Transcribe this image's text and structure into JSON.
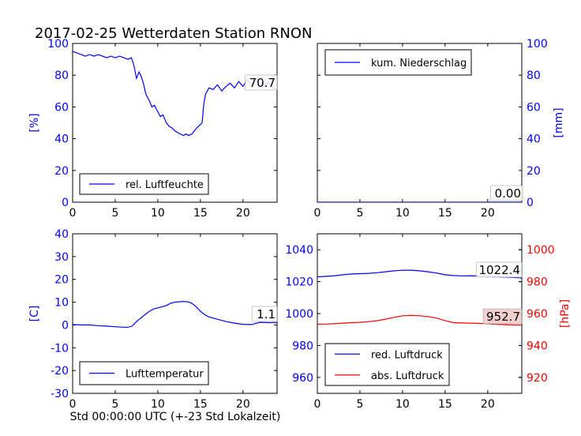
{
  "title": "2017-02-25 Wetterdaten Station RNON",
  "xlabel": "Std 00:00:00 UTC (+-23 Std Lokalzeit)",
  "chart_data": [
    {
      "type": "line",
      "name": "humidity",
      "ylabel": "[%]",
      "xlim": [
        0,
        24
      ],
      "ylim": [
        0,
        100
      ],
      "x_ticks": [
        0,
        5,
        10,
        15,
        20
      ],
      "y_ticks": [
        0,
        20,
        40,
        60,
        80,
        100
      ],
      "tick_color": "#0000ff",
      "legend_position": "lower-left",
      "last_value_label": "70.7",
      "series": [
        {
          "name": "rel. Luftfeuchte",
          "color": "#0000ff",
          "x": [
            0,
            0.5,
            1,
            1.5,
            2,
            2.5,
            3,
            3.5,
            4,
            4.5,
            5,
            5.5,
            6,
            6.5,
            6.9,
            7.2,
            7.5,
            7.8,
            8,
            8.3,
            8.6,
            9,
            9.3,
            9.6,
            10,
            10.3,
            10.6,
            11,
            11.3,
            11.6,
            12,
            12.3,
            12.6,
            13,
            13.3,
            13.6,
            14,
            14.3,
            14.6,
            15,
            15.2,
            15.4,
            15.6,
            16,
            16.5,
            17,
            17.5,
            18,
            18.5,
            19,
            19.5,
            20,
            20.5,
            21,
            21.5,
            22,
            22.5,
            23,
            23.5,
            24
          ],
          "y": [
            95,
            94,
            93,
            92,
            93,
            92,
            93,
            92,
            91,
            92,
            91,
            92,
            91,
            90,
            91,
            86,
            78,
            82,
            80,
            75,
            68,
            64,
            60,
            61,
            57,
            54,
            55,
            50,
            48,
            47,
            45,
            44,
            43,
            42,
            43,
            42,
            43,
            45,
            47,
            49,
            50,
            62,
            68,
            72,
            71,
            74,
            70,
            73,
            75,
            72,
            76,
            73,
            77,
            74,
            78,
            75,
            73,
            76,
            72,
            71
          ]
        }
      ]
    },
    {
      "type": "line",
      "name": "precipitation",
      "ylabel": "[mm]",
      "xlim": [
        0,
        24
      ],
      "ylim": [
        0,
        100
      ],
      "x_ticks": [
        0,
        5,
        10,
        15,
        20
      ],
      "y_ticks": [
        0,
        20,
        40,
        60,
        80,
        100
      ],
      "tick_color": "#0000ff",
      "legend_position": "top-left",
      "last_value_label": "0.00",
      "series": [
        {
          "name": "kum. Niederschlag",
          "color": "#0000ff",
          "x": [
            0,
            24
          ],
          "y": [
            0,
            0
          ]
        }
      ]
    },
    {
      "type": "line",
      "name": "temperature",
      "ylabel": "[C]",
      "xlim": [
        0,
        24
      ],
      "ylim": [
        -30,
        40
      ],
      "x_ticks": [
        0,
        5,
        10,
        15,
        20
      ],
      "y_ticks": [
        -30,
        -20,
        -10,
        0,
        10,
        20,
        30,
        40
      ],
      "tick_color": "#0000ff",
      "legend_position": "lower-left",
      "last_value_label": "1.1",
      "series": [
        {
          "name": "Lufttemperatur",
          "color": "#0000ff",
          "x": [
            0,
            1,
            2,
            3,
            4,
            5,
            6,
            6.5,
            7,
            7.5,
            8,
            8.5,
            9,
            9.5,
            10,
            10.5,
            11,
            11.5,
            12,
            12.5,
            13,
            13.5,
            14,
            14.5,
            15,
            15.5,
            16,
            17,
            18,
            19,
            20,
            21,
            22,
            23,
            24
          ],
          "y": [
            0.2,
            0,
            0,
            -0.3,
            -0.5,
            -0.8,
            -1,
            -1,
            -0.5,
            1.5,
            3,
            4.5,
            6,
            7,
            7.5,
            8,
            8.5,
            9.5,
            10,
            10.2,
            10.3,
            10.2,
            9.5,
            8,
            6,
            4.5,
            3.5,
            2.5,
            1.5,
            0.8,
            0.3,
            0.2,
            1.2,
            1,
            1.1
          ]
        }
      ]
    },
    {
      "type": "line",
      "name": "pressure",
      "xlim": [
        0,
        24
      ],
      "ylim": [
        950,
        1050
      ],
      "x_ticks": [
        0,
        5,
        10,
        15,
        20
      ],
      "y_ticks": [
        960,
        980,
        1000,
        1020,
        1040
      ],
      "tick_color": "#0000ff",
      "y2label": "[hPa]",
      "y2lim": [
        910,
        1010
      ],
      "y2_ticks": [
        920,
        940,
        960,
        980,
        1000
      ],
      "y2_tick_color": "#ff0000",
      "legend_position": "lower-left",
      "last_value_labels": [
        "1022.4",
        "952.7"
      ],
      "series": [
        {
          "name": "red. Luftdruck",
          "color": "#0000ff",
          "axis": "left",
          "x": [
            0,
            1,
            2,
            3,
            4,
            5,
            6,
            7,
            8,
            9,
            10,
            11,
            12,
            13,
            14,
            15,
            16,
            17,
            18,
            19,
            20,
            21,
            22,
            23,
            24
          ],
          "y": [
            1023,
            1023.3,
            1023.7,
            1024.3,
            1024.8,
            1025,
            1025.2,
            1025.6,
            1026.2,
            1026.8,
            1027.2,
            1027.2,
            1026.8,
            1026.2,
            1025.4,
            1024.3,
            1023.8,
            1023.6,
            1023.7,
            1023.6,
            1023.4,
            1023.1,
            1022.8,
            1022.6,
            1022.4
          ]
        },
        {
          "name": "abs. Luftdruck",
          "color": "#ff0000",
          "axis": "right",
          "x": [
            0,
            1,
            2,
            3,
            4,
            5,
            6,
            7,
            8,
            9,
            10,
            11,
            12,
            13,
            14,
            15,
            16,
            17,
            18,
            19,
            20,
            21,
            22,
            23,
            24
          ],
          "y": [
            953.3,
            953.4,
            953.6,
            954,
            954.3,
            954.5,
            954.9,
            955.5,
            956.5,
            957.6,
            958.6,
            958.8,
            958.6,
            958.1,
            957.2,
            955.6,
            954.3,
            954.1,
            954,
            953.8,
            953.6,
            953.3,
            953,
            952.8,
            952.7
          ]
        }
      ]
    }
  ]
}
